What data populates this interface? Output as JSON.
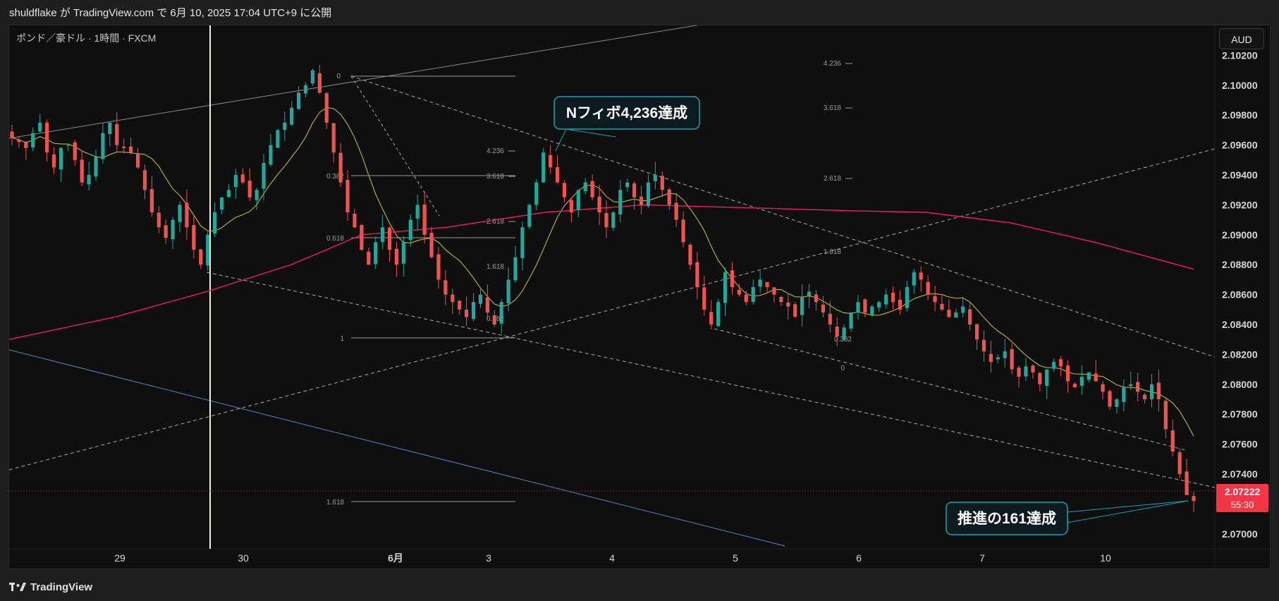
{
  "header": {
    "publish_line": "shuldflake が TradingView.com で 6月 10, 2025 17:04 UTC+9 に公開"
  },
  "chart": {
    "symbol_title": "ポンド／豪ドル · 1時間 · FXCM",
    "currency_button": "AUD",
    "last_price": "2.07222",
    "countdown": "55:30",
    "annotations": {
      "nfibo": "Nフィボ4,236達成",
      "propulsion": "推進の161達成"
    }
  },
  "footer": {
    "brand": "TradingView"
  },
  "colors": {
    "background": "#0f0f0f",
    "up_candle": "#26a69a",
    "down_candle": "#ef5350",
    "ma_fast": "#b5a642",
    "ma_slow": "#e91e63",
    "blue_line": "#5b7fd0",
    "price_label": "#f23645",
    "callout_border": "#1ba1b3"
  },
  "chart_data": {
    "type": "candlestick",
    "title": "ポンド／豪ドル · 1時間 · FXCM",
    "x_ticks": [
      "29",
      "30",
      "6月",
      "3",
      "4",
      "5",
      "6",
      "7",
      "10"
    ],
    "y_ticks": [
      "2.10200",
      "2.10000",
      "2.09800",
      "2.09600",
      "2.09400",
      "2.09200",
      "2.09000",
      "2.08800",
      "2.08600",
      "2.08400",
      "2.08200",
      "2.08000",
      "2.07800",
      "2.07600",
      "2.07400",
      "2.07000"
    ],
    "ylim": [
      2.069,
      2.104
    ],
    "last_price": 2.07222,
    "fib_labels": [
      {
        "set": "A",
        "labels": [
          "0",
          "0.382",
          "0.618",
          "1",
          "1.618"
        ]
      },
      {
        "set": "B",
        "labels": [
          "4.236",
          "3.618",
          "2.618",
          "1.618",
          "0.382"
        ]
      },
      {
        "set": "C",
        "labels": [
          "4.236",
          "3.618",
          "2.618",
          "1.618",
          "0.382",
          "0"
        ]
      }
    ],
    "close_path": [
      2.0965,
      2.0962,
      2.0958,
      2.0968,
      2.0975,
      2.0955,
      2.0945,
      2.0958,
      2.096,
      2.095,
      2.0935,
      2.094,
      2.0952,
      2.0968,
      2.0975,
      2.096,
      2.0958,
      2.0955,
      2.0945,
      2.093,
      2.0915,
      2.0905,
      2.0898,
      2.091,
      2.092,
      2.0905,
      2.089,
      2.088,
      2.09,
      2.0915,
      2.0925,
      2.093,
      2.094,
      2.0935,
      2.0925,
      2.093,
      2.0948,
      2.096,
      2.097,
      2.0975,
      2.0985,
      2.0995,
      2.1,
      2.101,
      2.0995,
      2.0975,
      2.0955,
      2.0935,
      2.0915,
      2.0905,
      2.089,
      2.088,
      2.0895,
      2.0905,
      2.089,
      2.088,
      2.0895,
      2.091,
      2.092,
      2.09,
      2.0885,
      2.087,
      2.086,
      2.0855,
      2.085,
      2.0845,
      2.0855,
      2.086,
      2.0848,
      2.084,
      2.0855,
      2.087,
      2.0885,
      2.0905,
      2.092,
      2.0935,
      2.0955,
      2.0945,
      2.0935,
      2.0925,
      2.0915,
      2.093,
      2.0935,
      2.0925,
      2.0915,
      2.0905,
      2.0915,
      2.093,
      2.0935,
      2.0925,
      2.092,
      2.0935,
      2.094,
      2.093,
      2.092,
      2.091,
      2.0895,
      2.088,
      2.0865,
      2.085,
      2.084,
      2.0855,
      2.0875,
      2.0865,
      2.086,
      2.0855,
      2.0865,
      2.087,
      2.0865,
      2.086,
      2.0855,
      2.0852,
      2.0845,
      2.0858,
      2.0862,
      2.0855,
      2.0848,
      2.084,
      2.0832,
      2.0838,
      2.0848,
      2.0855,
      2.0848,
      2.0852,
      2.0855,
      2.086,
      2.0855,
      2.085,
      2.0865,
      2.0875,
      2.087,
      2.086,
      2.0855,
      2.085,
      2.0845,
      2.0848,
      2.0852,
      2.084,
      2.083,
      2.0822,
      2.0815,
      2.0818,
      2.0822,
      2.081,
      2.0805,
      2.0812,
      2.0808,
      2.08,
      2.081,
      2.0815,
      2.0812,
      2.0802,
      2.0798,
      2.0805,
      2.0808,
      2.0802,
      2.0795,
      2.0785,
      2.079,
      2.0798,
      2.08,
      2.0795,
      2.079,
      2.08,
      2.079,
      2.077,
      2.0755,
      2.074,
      2.0726,
      2.0722
    ]
  }
}
